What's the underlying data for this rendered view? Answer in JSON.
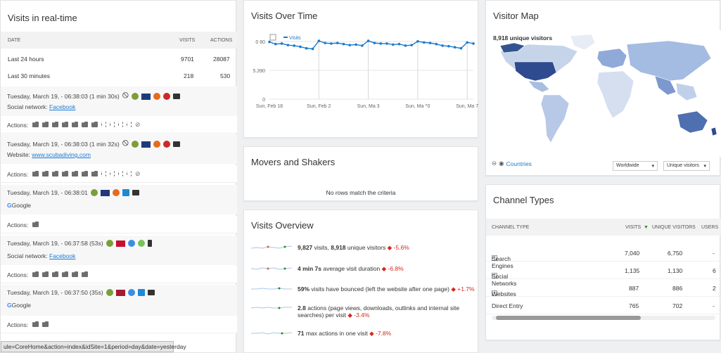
{
  "realtime": {
    "title": "Visits in real-time",
    "headers": {
      "date": "DATE",
      "visits": "VISITS",
      "actions": "ACTIONS"
    },
    "rows": [
      {
        "label": "Last 24 hours",
        "visits": "9701",
        "actions": "28087"
      },
      {
        "label": "Last 30 minutes",
        "visits": "218",
        "actions": "530"
      }
    ],
    "visits": [
      {
        "time": "Tuesday, March 19, - 06:38:03 (1 min 30s)",
        "source_label": "Social network:",
        "source_link": "Facebook"
      },
      {
        "time": "Tuesday, March 19, - 06:38:03 (1 min 32s)",
        "source_label": "Website:",
        "source_link": "www.scubadiving.com"
      },
      {
        "time": "Tuesday, March 19, - 06:38:01",
        "source_label": "",
        "source_link": "Google"
      },
      {
        "time": "Tuesday, March 19, - 06:37:58 (53s)",
        "source_label": "Social network:",
        "source_link": "Facebook"
      },
      {
        "time": "Tuesday, March 19, - 06:37:50 (35s)",
        "source_label": "",
        "source_link": "Google"
      }
    ],
    "actions_label": "Actions:",
    "status_url": "ule=CoreHome&action=index&idSite=1&period=day&date=yesterday"
  },
  "visits_over_time": {
    "title": "Visits Over Time",
    "legend": "Visits",
    "y_ticks": [
      "0 80",
      "5.390",
      "0"
    ],
    "x_ticks": [
      "Sun, Feb 18",
      "Sun, Feb 2",
      "Sun, Ma  3",
      "Sun, Ma  ^0",
      "Sun, Ma  7"
    ]
  },
  "chart_data": {
    "type": "line",
    "title": "Visits Over Time",
    "series": [
      {
        "name": "Visits",
        "values": [
          10700,
          10300,
          10400,
          10100,
          10000,
          9800,
          9500,
          9400,
          10900,
          10500,
          10400,
          10500,
          10300,
          10100,
          10200,
          10000,
          10900,
          10500,
          10400,
          10400,
          10200,
          10300,
          10000,
          10100,
          10800,
          10600,
          10500,
          10300,
          10000,
          9900,
          9700,
          9500,
          10600,
          10400
        ]
      }
    ],
    "ylim": [
      0,
      10780
    ]
  },
  "movers": {
    "title": "Movers and Shakers",
    "empty": "No rows match the criteria"
  },
  "overview": {
    "title": "Visits Overview",
    "rows": [
      {
        "value": "9,827",
        "text": " visits, ",
        "value2": "8,918",
        "text2": " unique visitors",
        "change": "-5.6%"
      },
      {
        "value": "4 min 7s",
        "text": " average visit duration",
        "value2": "",
        "text2": "",
        "change": "-6.8%"
      },
      {
        "value": "59%",
        "text": " visits have bounced (left the website after one page)",
        "value2": "",
        "text2": "",
        "change": "+1.7%"
      },
      {
        "value": "2.8",
        "text": " actions (page views, downloads, outlinks and internal site searches) per visit",
        "value2": "",
        "text2": "",
        "change": "-3.4%"
      },
      {
        "value": "71",
        "text": " max actions in one visit",
        "value2": "",
        "text2": "",
        "change": "-7.8%"
      }
    ]
  },
  "visitor_map": {
    "title": "Visitor Map",
    "summary": "8,918 unique visitors",
    "countries_link": "Countries",
    "region_select": "Worldwide",
    "metric_select": "Unique visitors"
  },
  "channel_types": {
    "title": "Channel Types",
    "headers": {
      "type": "CHANNEL TYPE",
      "visits": "VISITS",
      "unique": "UNIQUE VISITORS",
      "users": "USERS"
    },
    "rows": [
      {
        "type": "Search Engines",
        "visits": "7,040",
        "unique": "6,750",
        "users": "-",
        "expand": true
      },
      {
        "type": "Social Networks",
        "visits": "1,135",
        "unique": "1,130",
        "users": "6",
        "expand": true
      },
      {
        "type": "Websites",
        "visits": "887",
        "unique": "886",
        "users": "2",
        "expand": true
      },
      {
        "type": "Direct Entry",
        "visits": "765",
        "unique": "702",
        "users": "-",
        "expand": false
      }
    ]
  }
}
